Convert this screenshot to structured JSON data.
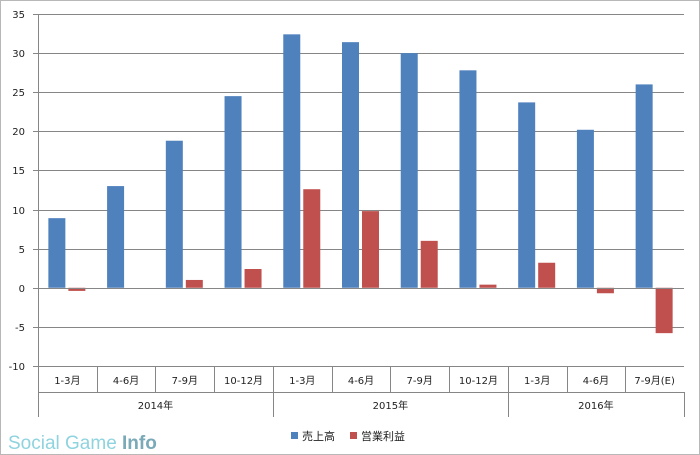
{
  "chart_data": {
    "type": "bar",
    "categories": [
      "1-3月",
      "4-6月",
      "7-9月",
      "10-12月",
      "1-3月",
      "4-6月",
      "7-9月",
      "10-12月",
      "1-3月",
      "4-6月",
      "7-9月(E)"
    ],
    "groups": [
      {
        "label": "2014年",
        "span": 4
      },
      {
        "label": "2015年",
        "span": 4
      },
      {
        "label": "2016年",
        "span": 3
      }
    ],
    "series": [
      {
        "name": "売上高",
        "color": "#4f81bd",
        "values": [
          8.9,
          13.0,
          18.8,
          24.5,
          32.4,
          31.4,
          30.0,
          27.8,
          23.7,
          20.2,
          26.0
        ]
      },
      {
        "name": "営業利益",
        "color": "#c0504d",
        "values": [
          -0.4,
          0.0,
          1.0,
          2.4,
          12.6,
          9.8,
          6.0,
          0.4,
          3.2,
          -0.7,
          -5.8
        ]
      }
    ],
    "ylim": [
      -10,
      35
    ],
    "yticks": [
      -10,
      -5,
      0,
      5,
      10,
      15,
      20,
      25,
      30,
      35
    ],
    "grid": true,
    "legend": "bottom"
  },
  "watermark": {
    "text_a": "Social Game",
    "text_b": "Info"
  }
}
